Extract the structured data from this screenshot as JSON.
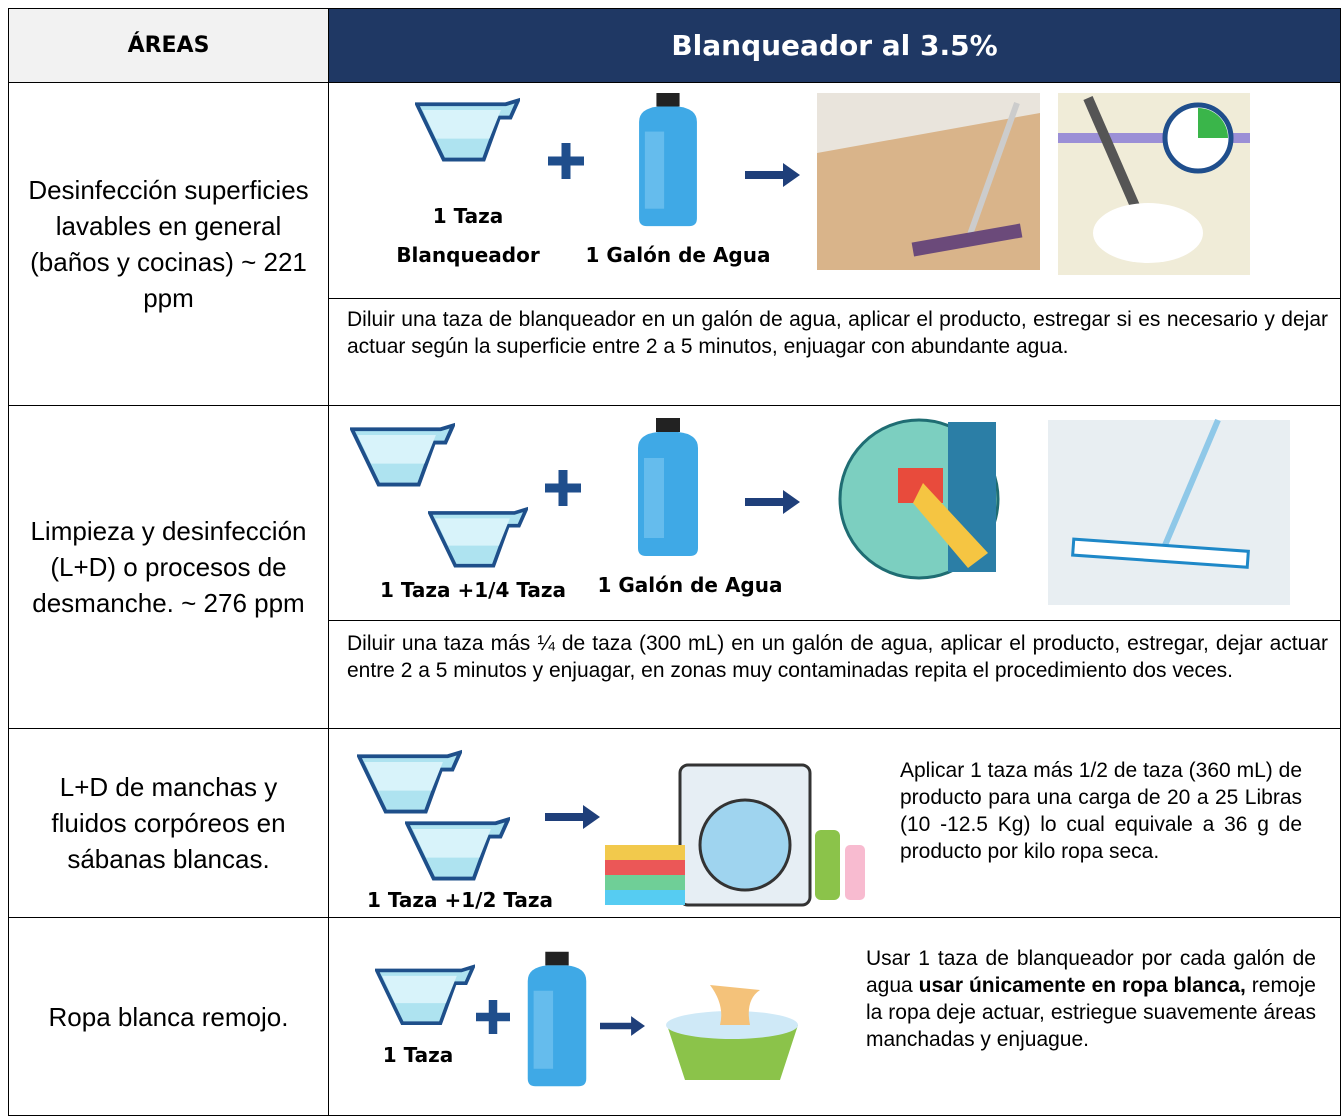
{
  "header": {
    "area": "ÁREAS",
    "title": "Blanqueador al 3.5%"
  },
  "rows": [
    {
      "area": "Desinfección superficies lavables en general (baños y cocinas) ~ 221 ppm",
      "labels": [
        "1 Taza",
        "Blanqueador",
        "1 Galón de Agua"
      ],
      "description": [
        "Diluir una taza de blanqueador en un galón de agua, aplicar el producto, estregar si es necesario y dejar actuar según la superficie entre 2 a 5 minutos, enjuagar con abundante agua."
      ]
    },
    {
      "area": "Limpieza y desinfección (L+D) o procesos de desmanche. ~ 276 ppm",
      "labels": [
        "1 Taza +1/4 Taza",
        "1 Galón de Agua"
      ],
      "description": [
        "Diluir una taza más ¼ de taza (300 mL) en un galón de agua, aplicar el producto, estregar, dejar actuar entre 2 a 5 minutos y enjuagar, en zonas muy contaminadas repita el procedimiento dos veces."
      ]
    },
    {
      "area": "L+D de manchas y fluidos corpóreos en sábanas blancas.",
      "labels": [
        "1 Taza +1/2 Taza"
      ],
      "description": [
        "Aplicar 1 taza más 1/2 de taza (360 mL) de producto para una carga de 20 a 25 Libras (10 -12.5 Kg) lo cual equivale a 36 g de producto por kilo ropa seca."
      ]
    },
    {
      "area": "Ropa blanca remojo.",
      "labels": [
        "1 Taza"
      ],
      "description": [
        "Usar 1 taza de blanqueador por cada galón de agua ",
        "usar únicamente en ropa blanca,",
        " remoje la ropa deje actuar, estriegue suavemente áreas manchadas y enjuague."
      ]
    }
  ]
}
